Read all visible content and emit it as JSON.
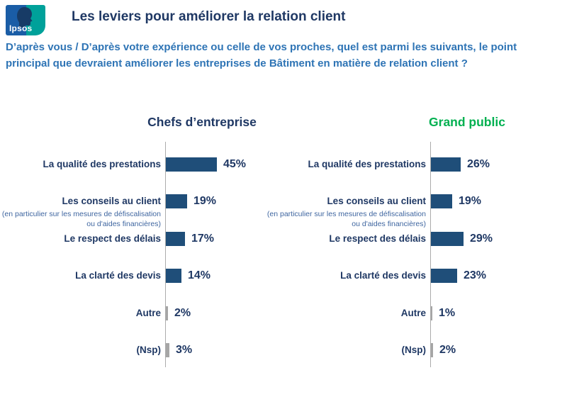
{
  "logo": {
    "text": "Ipsos"
  },
  "header": {
    "title": "Les leviers pour améliorer la relation client"
  },
  "question": {
    "text": "D’après vous / D’après votre expérience ou celle de vos proches, quel est parmi les suivants, le point\nprincipal que devraient améliorer les entreprises de Bâtiment en matière de relation client ?"
  },
  "colors": {
    "bar_primary": "#1F4E79",
    "bar_muted": "#A6A6A6",
    "label": "#1F3864",
    "note": "#3F66A0",
    "axis": "#ABABAB",
    "accent_green": "#00B050",
    "question": "#2E74B5"
  },
  "chart_data": [
    {
      "type": "bar",
      "orientation": "horizontal",
      "title": "Chefs d’entreprise",
      "title_color": "#1F3864",
      "unit": "%",
      "xlim": [
        0,
        50
      ],
      "grid": false,
      "categories": [
        "La qualité des prestations",
        "Les conseils au client",
        "Le respect des délais",
        "La clarté des devis",
        "Autre",
        "(Nsp)"
      ],
      "category_notes": [
        "",
        "(en particulier sur les mesures de défiscalisation ou d'aides financières)",
        "",
        "",
        "",
        ""
      ],
      "values": [
        45,
        19,
        17,
        14,
        2,
        3
      ],
      "value_labels": [
        "45%",
        "19%",
        "17%",
        "14%",
        "2%",
        "3%"
      ],
      "bar_styles": [
        "primary",
        "primary",
        "primary",
        "primary",
        "muted",
        "muted"
      ]
    },
    {
      "type": "bar",
      "orientation": "horizontal",
      "title": "Grand public",
      "title_color": "#00B050",
      "unit": "%",
      "xlim": [
        0,
        50
      ],
      "grid": false,
      "categories": [
        "La qualité des prestations",
        "Les conseils au client",
        "Le respect des délais",
        "La clarté des devis",
        "Autre",
        "(Nsp)"
      ],
      "category_notes": [
        "",
        "(en particulier sur les mesures de défiscalisation ou d'aides financières)",
        "",
        "",
        "",
        ""
      ],
      "values": [
        26,
        19,
        29,
        23,
        1,
        2
      ],
      "value_labels": [
        "26%",
        "19%",
        "29%",
        "23%",
        "1%",
        "2%"
      ],
      "bar_styles": [
        "primary",
        "primary",
        "primary",
        "primary",
        "muted",
        "muted"
      ]
    }
  ]
}
